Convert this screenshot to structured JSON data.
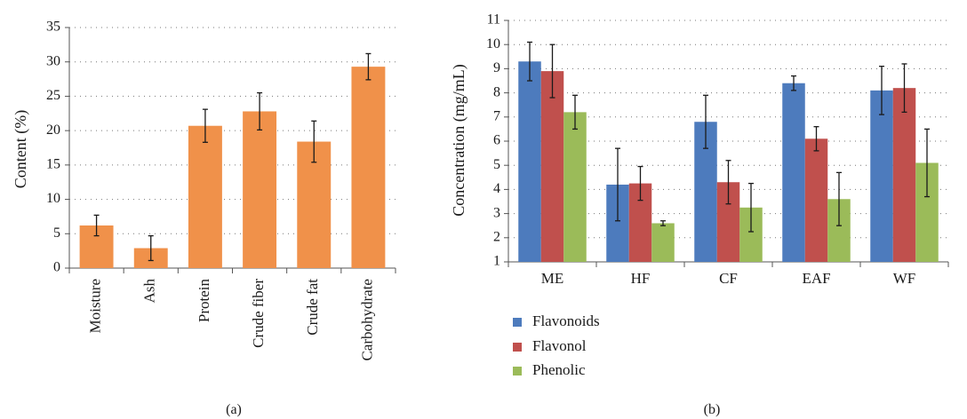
{
  "chart_data": [
    {
      "type": "bar",
      "panel_label": "(a)",
      "xlabel": "",
      "ylabel": "Content (%)",
      "ylim": [
        0,
        35
      ],
      "yticks": [
        0,
        5,
        10,
        15,
        20,
        25,
        30,
        35
      ],
      "grid": "horizontal dotted",
      "categories": [
        "Moisture",
        "Ash",
        "Protein",
        "Crude fiber",
        "Crude fat",
        "Carbohydrate"
      ],
      "values": [
        6.2,
        2.9,
        20.7,
        22.8,
        18.4,
        29.3
      ],
      "errors": [
        1.5,
        1.8,
        2.4,
        2.7,
        3.0,
        1.9
      ],
      "color": "#f0914a"
    },
    {
      "type": "bar",
      "panel_label": "(b)",
      "xlabel": "",
      "ylabel": "Concentration (mg/mL)",
      "ylim": [
        1,
        11
      ],
      "yticks": [
        1,
        2,
        3,
        4,
        5,
        6,
        7,
        8,
        9,
        10,
        11
      ],
      "grid": "horizontal dotted",
      "legend_position": "bottom-left",
      "categories": [
        "ME",
        "HF",
        "CF",
        "EAF",
        "WF"
      ],
      "series": [
        {
          "name": "Flavonoids",
          "color": "#4d7bbd",
          "values": [
            9.3,
            4.2,
            6.8,
            8.4,
            8.1
          ],
          "errors": [
            0.8,
            1.5,
            1.1,
            0.3,
            1.0
          ]
        },
        {
          "name": "Flavonol",
          "color": "#c0504d",
          "values": [
            8.9,
            4.25,
            4.3,
            6.1,
            8.2
          ],
          "errors": [
            1.1,
            0.7,
            0.9,
            0.5,
            1.0
          ]
        },
        {
          "name": "Phenolic",
          "color": "#9bbb59",
          "values": [
            7.2,
            2.6,
            3.25,
            3.6,
            5.1
          ],
          "errors": [
            0.7,
            0.1,
            1.0,
            1.1,
            1.4
          ]
        }
      ]
    }
  ]
}
